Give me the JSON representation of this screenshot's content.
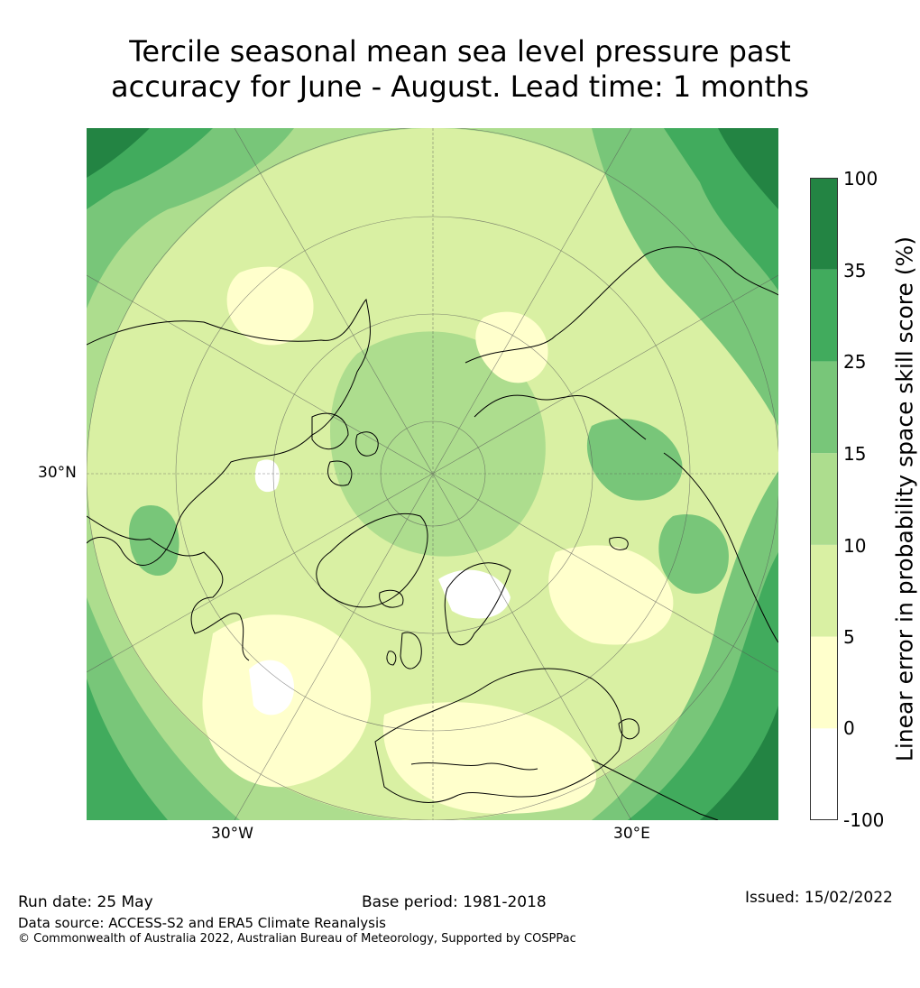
{
  "title_line1": "Tercile seasonal mean sea level pressure past",
  "title_line2": "accuracy for June - August. Lead time: 1 months",
  "map": {
    "lat_label_left": "30°N",
    "lon_label_west": "30°W",
    "lon_label_east": "30°E",
    "colors": {
      "land_border": "#000000",
      "graticule": "#555555"
    }
  },
  "colorbar": {
    "title": "Linear error in probability space skill score (%)",
    "ticks": [
      "100",
      "35",
      "25",
      "15",
      "10",
      "5",
      "0",
      "-100"
    ],
    "bins": [
      {
        "from": -100,
        "to": 0,
        "color": "#ffffff"
      },
      {
        "from": 0,
        "to": 5,
        "color": "#ffffcc"
      },
      {
        "from": 5,
        "to": 10,
        "color": "#d9f0a3"
      },
      {
        "from": 10,
        "to": 15,
        "color": "#addd8e"
      },
      {
        "from": 15,
        "to": 25,
        "color": "#78c679"
      },
      {
        "from": 25,
        "to": 35,
        "color": "#41ab5d"
      },
      {
        "from": 35,
        "to": 100,
        "color": "#238443"
      }
    ]
  },
  "footer": {
    "run_date": "Run date: 25 May",
    "base_period": "Base period: 1981-2018",
    "issued": "Issued: 15/02/2022",
    "data_source": "Data source: ACCESS-S2 and ERA5 Climate Reanalysis",
    "copyright": "© Commonwealth of Australia 2022, Australian Bureau of Meteorology, Supported by COSPPac"
  }
}
